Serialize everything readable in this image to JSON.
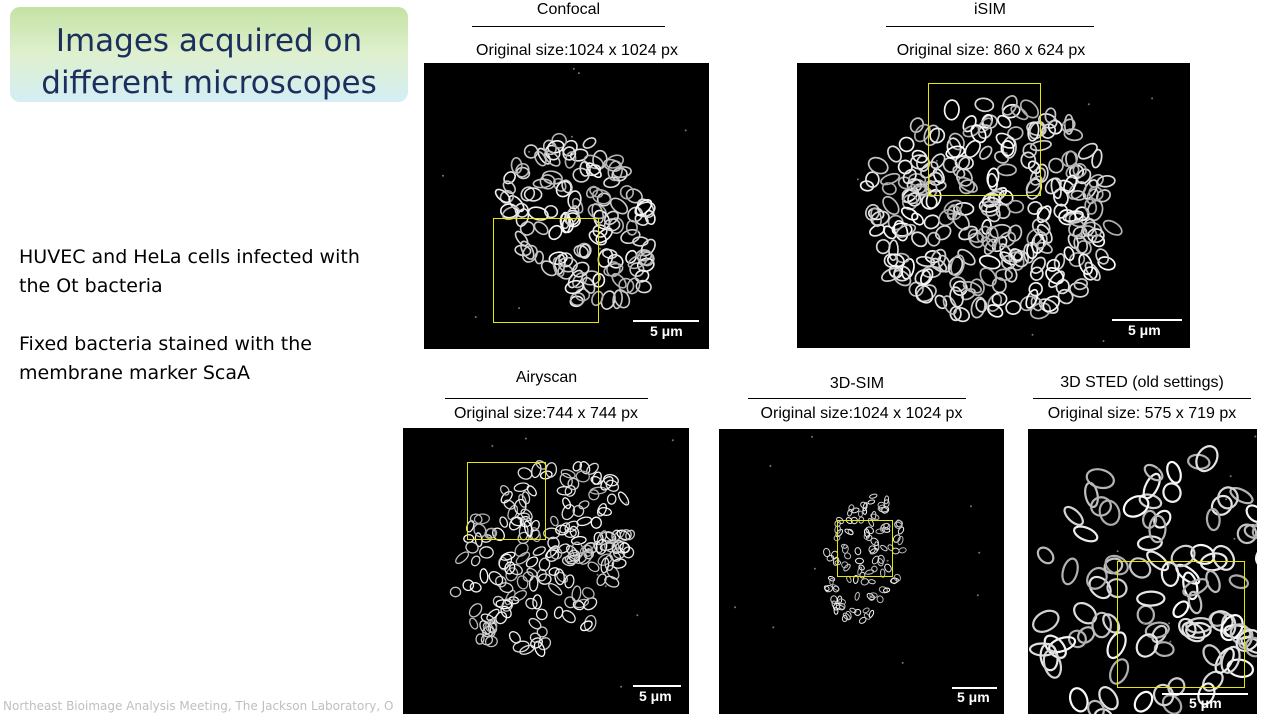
{
  "slide": {
    "title_line1": "Images acquired on",
    "title_line2": "different microscopes",
    "body": [
      "HUVEC and HeLa cells infected with",
      "the Ot bacteria",
      "Fixed bacteria stained with the",
      "membrane marker ScaA"
    ],
    "footer": "Northeast Bioimage Analysis Meeting, The Jackson Laboratory, O"
  },
  "panels": [
    {
      "name": "Confocal",
      "size": "Original size:1024 x 1024 px",
      "scalebar": "5 μm"
    },
    {
      "name": "iSIM",
      "size": "Original size: 860 x 624 px",
      "scalebar": "5 μm"
    },
    {
      "name": "Airyscan",
      "size": "Original size:744 x 744 px",
      "scalebar": "5 μm"
    },
    {
      "name": "3D-SIM",
      "size": "Original size:1024 x 1024 px",
      "scalebar": "5 μm"
    },
    {
      "name": "3D STED (old settings)",
      "size": "Original size: 575 x 719 px",
      "scalebar": "5 μm"
    }
  ],
  "colors": {
    "roi": "#e6e600",
    "title": "#1b2f5e",
    "image_bg": "#000000"
  }
}
